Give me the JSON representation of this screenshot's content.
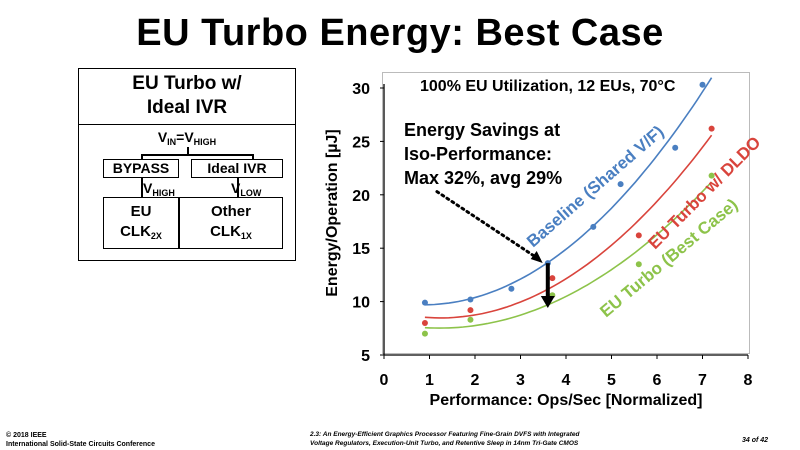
{
  "slide": {
    "title": "EU Turbo Energy: Best Case"
  },
  "diagram": {
    "title_line1": "EU Turbo w/",
    "title_line2": "Ideal IVR",
    "vin_prefix": "V",
    "vin_sub": "IN",
    "vin_eq": "=V",
    "vin_sub2": "HIGH",
    "bypass_label": "BYPASS",
    "ivr_label": "Ideal IVR",
    "vhigh_v": "V",
    "vhigh_sub": "HIGH",
    "vlow_v": "V",
    "vlow_sub": "LOW",
    "eu_box_line1": "EU",
    "eu_box_line2": "CLK",
    "eu_box_sub": "2X",
    "other_box_line1": "Other",
    "other_box_line2": "CLK",
    "other_box_sub": "1X"
  },
  "annotations": {
    "utilization": "100% EU Utilization, 12 EUs, 70°C",
    "savings_line1": "Energy Savings at",
    "savings_line2": "Iso-Performance:",
    "savings_line3": "Max 32%, avg 29%"
  },
  "footer": {
    "copyright": "© 2018 IEEE",
    "conference": "International Solid-State Circuits Conference",
    "paper_line1": "2.3: An Energy-Efficient Graphics Processor Featuring Fine-Grain DVFS with Integrated",
    "paper_line2": "Voltage Regulators, Execution-Unit Turbo, and Retentive Sleep in 14nm Tri-Gate CMOS",
    "page": "34 of 42"
  },
  "colors": {
    "baseline": "#4a7fc1",
    "dldo": "#d9443c",
    "best": "#8dc34a"
  },
  "chart_data": {
    "type": "scatter",
    "xlabel": "Performance: Ops/Sec [Normalized]",
    "ylabel": "Energy/Operation [µJ]",
    "xlim": [
      0,
      8
    ],
    "ylim": [
      5,
      30
    ],
    "x_ticks": [
      "0",
      "1",
      "2",
      "3",
      "4",
      "5",
      "6",
      "7",
      "8"
    ],
    "y_ticks": [
      "5",
      "10",
      "15",
      "20",
      "25",
      "30"
    ],
    "grid": false,
    "series": [
      {
        "name": "Baseline (Shared V/F)",
        "color": "#4a7fc1",
        "points": [
          [
            0.9,
            9.9
          ],
          [
            1.9,
            10.2
          ],
          [
            2.8,
            11.2
          ],
          [
            3.6,
            13.6
          ],
          [
            4.6,
            17.0
          ],
          [
            5.2,
            21.0
          ],
          [
            6.4,
            24.4
          ],
          [
            7.0,
            30.3
          ]
        ],
        "fit_x_range": [
          0.9,
          7.2
        ]
      },
      {
        "name": "EU Turbo w/ DLDO",
        "color": "#d9443c",
        "points": [
          [
            0.9,
            8.0
          ],
          [
            1.9,
            9.2
          ],
          [
            3.7,
            12.2
          ],
          [
            5.6,
            16.2
          ],
          [
            7.2,
            26.2
          ]
        ],
        "fit_x_range": [
          0.9,
          7.2
        ]
      },
      {
        "name": "EU Turbo (Best Case)",
        "color": "#8dc34a",
        "points": [
          [
            0.9,
            7.0
          ],
          [
            1.9,
            8.3
          ],
          [
            3.7,
            10.6
          ],
          [
            5.6,
            13.5
          ],
          [
            7.2,
            21.8
          ]
        ],
        "fit_x_range": [
          0.9,
          7.2
        ]
      }
    ],
    "arrow": {
      "from": [
        3.6,
        13.6
      ],
      "to": [
        3.6,
        9.4
      ]
    },
    "dotted_arrow": {
      "from": [
        0.9,
        20.3
      ],
      "to": [
        3.4,
        13.8
      ]
    }
  }
}
